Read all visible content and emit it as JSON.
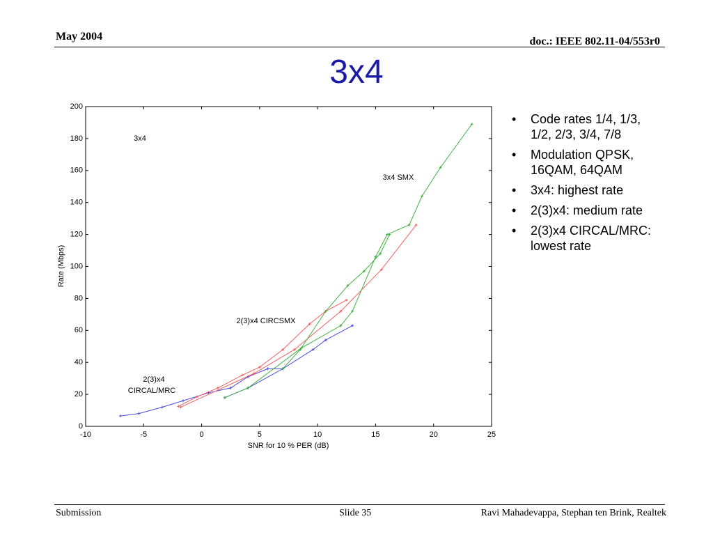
{
  "header": {
    "date": "May 2004",
    "doc": "doc.: IEEE 802.11-04/553r0"
  },
  "title": "3x4",
  "bullets": [
    "Code rates 1/4, 1/3, 1/2, 2/3, 3/4, 7/8",
    "Modulation QPSK, 16QAM, 64QAM",
    "3x4: highest rate",
    "2(3)x4: medium rate",
    "2(3)x4 CIRCAL/MRC: lowest rate"
  ],
  "footer": {
    "left": "Submission",
    "center": "Slide 35",
    "right": "Ravi Mahadevappa, Stephan ten Brink, Realtek"
  },
  "chart_data": {
    "type": "line",
    "xlabel": "SNR for 10 % PER (dB)",
    "ylabel": "Rate (Mbps)",
    "annotations": [
      "3x4",
      "3x4 SMX",
      "2(3)x4 CIRCSMX",
      "2(3)x4",
      "CIRCAL/MRC"
    ],
    "xlim": [
      -10,
      25
    ],
    "xticks": [
      -10,
      -5,
      0,
      5,
      10,
      15,
      20,
      25
    ],
    "ylim": [
      0,
      200
    ],
    "yticks": [
      0,
      20,
      40,
      60,
      80,
      100,
      120,
      140,
      160,
      180,
      200
    ],
    "series": [
      {
        "color": "#4a4ae0",
        "x": [
          -7,
          -5.4,
          -3.4,
          -1.6,
          0.6,
          2.5,
          4,
          5.7,
          7
        ],
        "values": [
          6.5,
          8,
          12,
          16,
          21,
          24,
          31,
          36,
          36
        ]
      },
      {
        "color": "#4a4ae0",
        "x": [
          2,
          4,
          7,
          9.6,
          10.7,
          13
        ],
        "values": [
          18,
          24,
          36,
          48,
          54,
          63
        ]
      },
      {
        "color": "#f06060",
        "x": [
          -2,
          -0.4,
          1.4,
          3.5,
          5,
          7,
          9.3,
          10.7,
          12.5
        ],
        "values": [
          12.5,
          18.5,
          24,
          32,
          37,
          48,
          64,
          72,
          79
        ]
      },
      {
        "color": "#f06060",
        "x": [
          -1.8,
          4.5,
          8,
          12,
          15.5,
          18.5
        ],
        "values": [
          12,
          33,
          48,
          72,
          98,
          126
        ]
      },
      {
        "color": "#40b040",
        "x": [
          2,
          4,
          8.6,
          12,
          13,
          15,
          16,
          17.9,
          19,
          20.6,
          23.3
        ],
        "values": [
          18,
          24,
          49,
          63,
          72,
          106,
          120,
          126,
          144,
          162,
          189
        ]
      },
      {
        "color": "#40b040",
        "x": [
          7,
          8.5,
          10.7,
          12.6,
          14,
          15.4,
          16.2
        ],
        "values": [
          36,
          48,
          72,
          88,
          97,
          108,
          120
        ]
      }
    ]
  }
}
